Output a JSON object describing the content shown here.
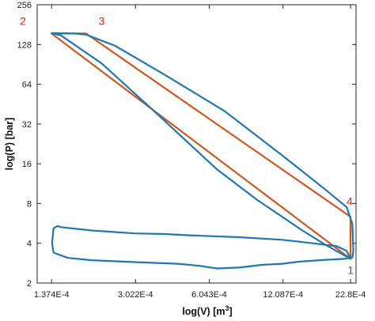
{
  "chart_data": {
    "type": "line",
    "title": "",
    "xlabel": "log(V) [m",
    "xlabel_sup": "3",
    "xlabel_tail": "]",
    "ylabel": "log(P) [bar]",
    "x_scale": "log",
    "y_scale": "log",
    "xlim": [
      0.00012,
      0.0024
    ],
    "ylim": [
      2,
      256
    ],
    "x_ticks": [
      0.0001374,
      0.0003022,
      0.0006043,
      0.0012087,
      0.00228
    ],
    "x_tick_labels": [
      "1.374E-4",
      "3.022E-4",
      "6.043E-4",
      "12.087E-4",
      "22.8E-4"
    ],
    "y_ticks": [
      2,
      4,
      8,
      16,
      32,
      64,
      128,
      256
    ],
    "y_tick_labels": [
      "2",
      "4",
      "8",
      "16",
      "32",
      "64",
      "128",
      "256"
    ],
    "grid": false,
    "legend": "none",
    "colors": {
      "ideal": "#d2571e",
      "measured": "#1f77b4",
      "labels": "#d62728"
    },
    "series": [
      {
        "color": "#d2571e",
        "x": [
          0.00228,
          0.0001374,
          0.00019,
          0.00228,
          0.00228
        ],
        "y": [
          3.05,
          155,
          155,
          6.35,
          3.05
        ]
      },
      {
        "color": "#1f77b4",
        "x": [
          0.00228,
          0.0018,
          0.00145,
          0.00095,
          0.00065,
          0.00035,
          0.00022,
          0.00015,
          0.0001374,
          0.000145,
          0.00017,
          0.00019,
          0.00025,
          0.0004,
          0.0007,
          0.0012,
          0.0018,
          0.0022,
          0.00232,
          0.00233,
          0.00234,
          0.00232,
          0.00215,
          0.0018,
          0.0014,
          0.0012,
          0.001,
          0.0008,
          0.00065,
          0.00055,
          0.00045,
          0.0003,
          0.0002,
          0.00016,
          0.00014,
          0.000138,
          0.00014,
          0.000145,
          0.00015,
          0.0002,
          0.0003,
          0.0004,
          0.0005,
          0.0008,
          0.0012,
          0.0016,
          0.002,
          0.0022,
          0.00228
        ],
        "y": [
          3.05,
          3.9,
          5.0,
          8.5,
          14.5,
          42.0,
          92.0,
          150.0,
          156.0,
          156.0,
          155.0,
          152.0,
          125.0,
          75.0,
          40.0,
          18.5,
          10.2,
          7.5,
          5.6,
          4.5,
          3.5,
          3.12,
          3.05,
          3.0,
          2.9,
          2.8,
          2.75,
          2.62,
          2.58,
          2.7,
          2.8,
          2.88,
          2.98,
          3.1,
          3.4,
          4.0,
          5.2,
          5.4,
          5.3,
          5.0,
          4.75,
          4.7,
          4.6,
          4.45,
          4.25,
          4.0,
          3.8,
          3.5,
          3.05
        ]
      }
    ],
    "annotations": [
      {
        "text": "1",
        "x": 0.00228,
        "y": 2.35
      },
      {
        "text": "2",
        "x": 0.000105,
        "y": 180
      },
      {
        "text": "3",
        "x": 0.00022,
        "y": 180
      },
      {
        "text": "4",
        "x": 0.00226,
        "y": 7.8
      }
    ]
  }
}
